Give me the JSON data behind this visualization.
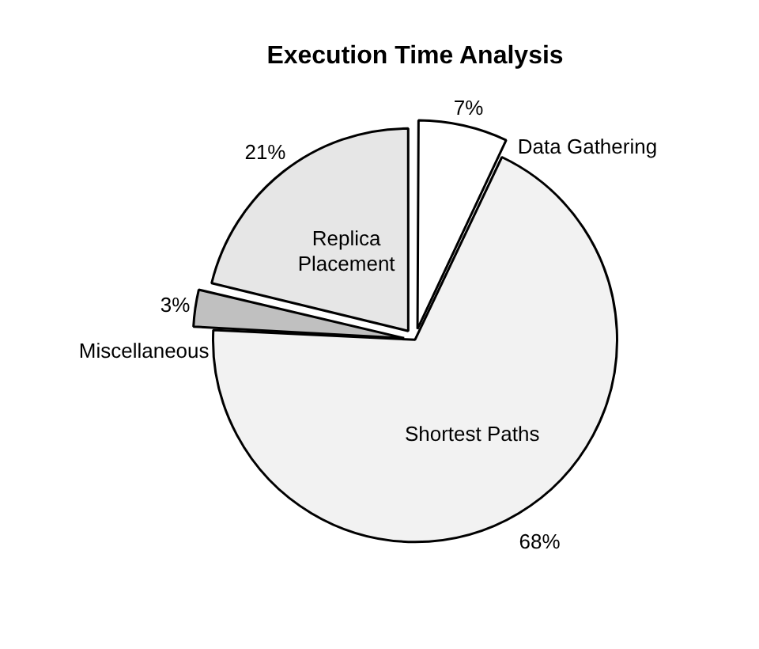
{
  "chart_data": {
    "type": "pie",
    "title": "Execution Time Analysis",
    "categories": [
      "Data Gathering",
      "Shortest Paths",
      "Miscellaneous",
      "Replica Placement"
    ],
    "values": [
      7,
      68,
      3,
      21
    ],
    "value_labels": [
      "7%",
      "68%",
      "3%",
      "21%"
    ],
    "colors": [
      "#ffffff",
      "#f2f2f2",
      "#c0c0c0",
      "#e6e6e6"
    ],
    "legend": false
  }
}
